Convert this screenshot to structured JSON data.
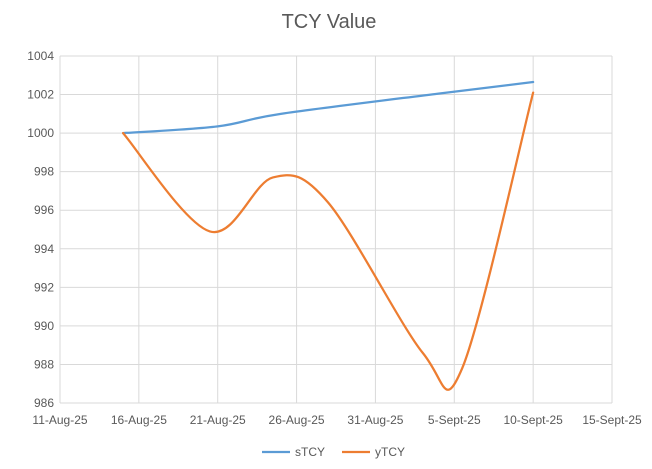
{
  "chart_data": {
    "type": "line",
    "title": "TCY Value",
    "xlabel": "",
    "ylabel": "",
    "x_tick_labels": [
      "11-Aug-25",
      "16-Aug-25",
      "21-Aug-25",
      "26-Aug-25",
      "31-Aug-25",
      "5-Sept-25",
      "10-Sept-25",
      "15-Sept-25"
    ],
    "x_tick_days": [
      0,
      5,
      10,
      15,
      20,
      25,
      30,
      35
    ],
    "xlim_days": [
      0,
      35
    ],
    "y_ticks": [
      986,
      988,
      990,
      992,
      994,
      996,
      998,
      1000,
      1002,
      1004
    ],
    "ylim": [
      986,
      1004
    ],
    "grid": true,
    "legend_position": "bottom",
    "series": [
      {
        "name": "sTCY",
        "color": "#5b9bd5",
        "x_days": [
          4,
          10,
          14,
          24,
          30
        ],
        "values": [
          1000.0,
          1000.35,
          1001.0,
          1002.05,
          1002.65
        ]
      },
      {
        "name": "yTCY",
        "color": "#ed7d31",
        "x_days": [
          4,
          9.5,
          13.5,
          17,
          23,
          25.5,
          30
        ],
        "values": [
          1000.0,
          994.9,
          997.7,
          996.4,
          988.6,
          987.8,
          1002.1
        ]
      }
    ]
  }
}
